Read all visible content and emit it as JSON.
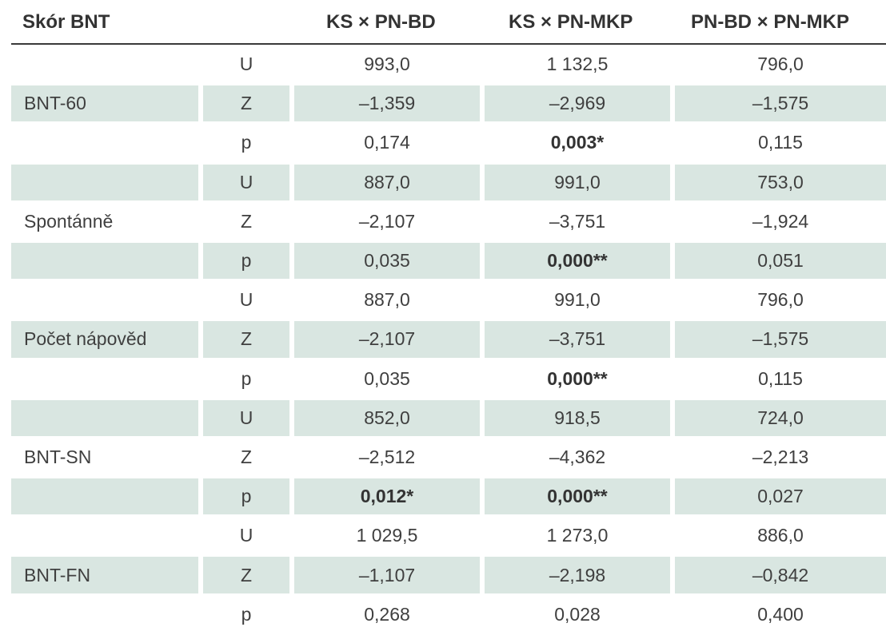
{
  "table": {
    "headers": [
      "Skór BNT",
      "KS × PN-BD",
      "KS × PN-MKP",
      "PN-BD × PN-MKP"
    ],
    "rows": [
      {
        "label": "",
        "stat": "U",
        "v1": "993,0",
        "v2": "1 132,5",
        "v3": "796,0",
        "shaded": false,
        "bold": [
          false,
          false,
          false
        ]
      },
      {
        "label": "BNT-60",
        "stat": "Z",
        "v1": "–1,359",
        "v2": "–2,969",
        "v3": "–1,575",
        "shaded": true,
        "bold": [
          false,
          false,
          false
        ]
      },
      {
        "label": "",
        "stat": "p",
        "v1": "0,174",
        "v2": "0,003*",
        "v3": "0,115",
        "shaded": false,
        "bold": [
          false,
          true,
          false
        ]
      },
      {
        "label": "",
        "stat": "U",
        "v1": "887,0",
        "v2": "991,0",
        "v3": "753,0",
        "shaded": true,
        "bold": [
          false,
          false,
          false
        ]
      },
      {
        "label": "Spontánně",
        "stat": "Z",
        "v1": "–2,107",
        "v2": "–3,751",
        "v3": "–1,924",
        "shaded": false,
        "bold": [
          false,
          false,
          false
        ]
      },
      {
        "label": "",
        "stat": "p",
        "v1": "0,035",
        "v2": "0,000**",
        "v3": "0,051",
        "shaded": true,
        "bold": [
          false,
          true,
          false
        ]
      },
      {
        "label": "",
        "stat": "U",
        "v1": "887,0",
        "v2": "991,0",
        "v3": "796,0",
        "shaded": false,
        "bold": [
          false,
          false,
          false
        ]
      },
      {
        "label": "Počet nápověd",
        "stat": "Z",
        "v1": "–2,107",
        "v2": "–3,751",
        "v3": "–1,575",
        "shaded": true,
        "bold": [
          false,
          false,
          false
        ]
      },
      {
        "label": "",
        "stat": "p",
        "v1": "0,035",
        "v2": "0,000**",
        "v3": "0,115",
        "shaded": false,
        "bold": [
          false,
          true,
          false
        ]
      },
      {
        "label": "",
        "stat": "U",
        "v1": "852,0",
        "v2": "918,5",
        "v3": "724,0",
        "shaded": true,
        "bold": [
          false,
          false,
          false
        ]
      },
      {
        "label": "BNT-SN",
        "stat": "Z",
        "v1": "–2,512",
        "v2": "–4,362",
        "v3": "–2,213",
        "shaded": false,
        "bold": [
          false,
          false,
          false
        ]
      },
      {
        "label": "",
        "stat": "p",
        "v1": "0,012*",
        "v2": "0,000**",
        "v3": "0,027",
        "shaded": true,
        "bold": [
          true,
          true,
          false
        ]
      },
      {
        "label": "",
        "stat": "U",
        "v1": "1 029,5",
        "v2": "1 273,0",
        "v3": "886,0",
        "shaded": false,
        "bold": [
          false,
          false,
          false
        ]
      },
      {
        "label": "BNT-FN",
        "stat": "Z",
        "v1": "–1,107",
        "v2": "–2,198",
        "v3": "–0,842",
        "shaded": true,
        "bold": [
          false,
          false,
          false
        ]
      },
      {
        "label": "",
        "stat": "p",
        "v1": "0,268",
        "v2": "0,028",
        "v3": "0,400",
        "shaded": false,
        "bold": [
          false,
          false,
          false
        ]
      }
    ]
  },
  "colors": {
    "row_shade": "#d9e6e1",
    "text": "#3f3f3f",
    "rule": "#3a3a3a"
  }
}
